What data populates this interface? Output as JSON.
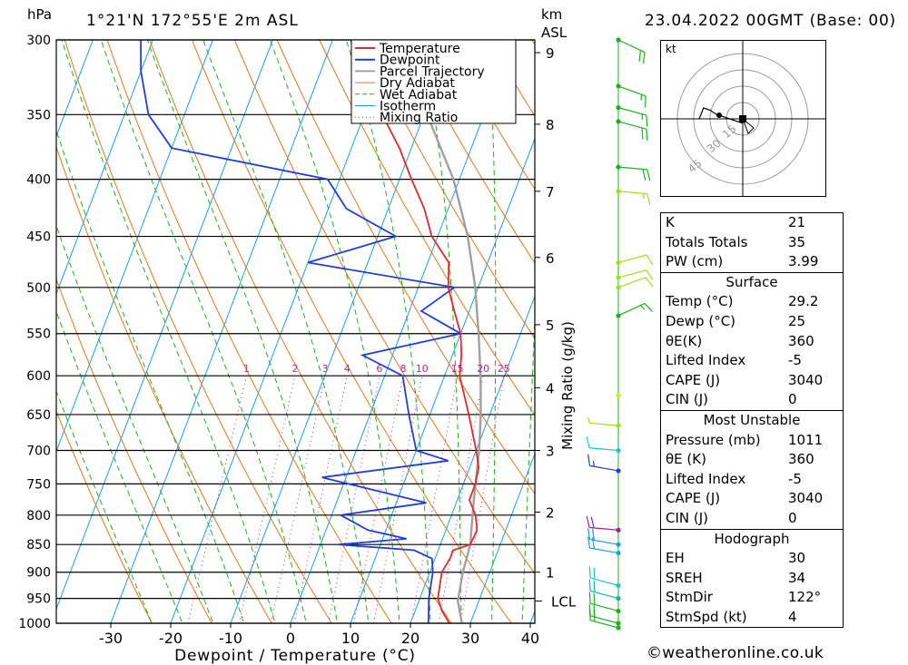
{
  "header": {
    "location": "1°21'N  172°55'E  2m  ASL",
    "datetime": "23.04.2022  00GMT  (Base: 00)",
    "pressure_unit": "hPa",
    "height_unit_1": "km",
    "height_unit_2": "ASL"
  },
  "chart_data": {
    "type": "skew-t",
    "xlabel": "Dewpoint / Temperature (°C)",
    "ylabel_right": "Mixing Ratio (g/kg)",
    "x_ticks": [
      -30,
      -20,
      -10,
      0,
      10,
      20,
      30,
      40
    ],
    "pressure_levels": [
      300,
      350,
      400,
      450,
      500,
      550,
      600,
      650,
      700,
      750,
      800,
      850,
      900,
      950,
      1000
    ],
    "height_ticks_km": [
      1,
      2,
      3,
      4,
      5,
      6,
      7,
      8,
      9
    ],
    "lcl_label": "LCL",
    "lcl_pressure": 955,
    "mixing_ratio_labels": [
      1,
      2,
      3,
      4,
      6,
      8,
      10,
      15,
      20,
      25
    ],
    "legend": [
      {
        "name": "Temperature",
        "color": "#e8262a"
      },
      {
        "name": "Dewpoint",
        "color": "#1f3fd6"
      },
      {
        "name": "Parcel Trajectory",
        "color": "#a0a0a0"
      },
      {
        "name": "Dry Adiabat",
        "color": "#e07818"
      },
      {
        "name": "Wet Adiabat",
        "color": "#19b419"
      },
      {
        "name": "Isotherm",
        "color": "#1aa0e0"
      },
      {
        "name": "Mixing Ratio",
        "color": "#c020a0"
      }
    ],
    "temperature": [
      [
        1013,
        29.2
      ],
      [
        1000,
        26.5
      ],
      [
        975,
        24.5
      ],
      [
        950,
        23.0
      ],
      [
        925,
        22.5
      ],
      [
        900,
        22.0
      ],
      [
        875,
        22.5
      ],
      [
        860,
        22.5
      ],
      [
        850,
        25.0
      ],
      [
        825,
        25.2
      ],
      [
        800,
        24.0
      ],
      [
        775,
        22.0
      ],
      [
        750,
        22.0
      ],
      [
        725,
        21.5
      ],
      [
        700,
        20.0
      ],
      [
        650,
        16.5
      ],
      [
        600,
        12.5
      ],
      [
        575,
        11.5
      ],
      [
        550,
        10.0
      ],
      [
        525,
        7.5
      ],
      [
        500,
        5.0
      ],
      [
        475,
        3.5
      ],
      [
        450,
        -1.0
      ],
      [
        425,
        -4.0
      ],
      [
        400,
        -8.0
      ],
      [
        375,
        -12.0
      ],
      [
        350,
        -17.0
      ],
      [
        300,
        -27.0
      ]
    ],
    "dewpoint": [
      [
        1013,
        25.0
      ],
      [
        1000,
        23.0
      ],
      [
        950,
        21.5
      ],
      [
        900,
        20.5
      ],
      [
        875,
        19.5
      ],
      [
        860,
        16.0
      ],
      [
        850,
        3.0
      ],
      [
        840,
        14.0
      ],
      [
        825,
        7.0
      ],
      [
        800,
        1.5
      ],
      [
        780,
        15.0
      ],
      [
        740,
        -4.0
      ],
      [
        715,
        16.0
      ],
      [
        700,
        10.0
      ],
      [
        650,
        6.5
      ],
      [
        600,
        3.0
      ],
      [
        575,
        -5.0
      ],
      [
        550,
        10.0
      ],
      [
        525,
        2.0
      ],
      [
        500,
        6.0
      ],
      [
        475,
        -20.0
      ],
      [
        450,
        -7.0
      ],
      [
        425,
        -17.0
      ],
      [
        400,
        -22.0
      ],
      [
        375,
        -50.0
      ],
      [
        350,
        -56.0
      ],
      [
        320,
        -60.0
      ],
      [
        300,
        -62.0
      ]
    ],
    "parcel": [
      [
        1013,
        29.2
      ],
      [
        955,
        26.5
      ],
      [
        900,
        25.5
      ],
      [
        850,
        25.0
      ],
      [
        800,
        23.5
      ],
      [
        750,
        22.0
      ],
      [
        700,
        20.5
      ],
      [
        650,
        18.5
      ],
      [
        600,
        16.0
      ],
      [
        550,
        13.0
      ],
      [
        500,
        9.5
      ],
      [
        450,
        5.0
      ],
      [
        400,
        -1.0
      ],
      [
        350,
        -9.5
      ],
      [
        300,
        -22.0
      ]
    ],
    "wind_barbs": [
      {
        "p": 300,
        "dir": 295,
        "spd": 20,
        "color": "#19b419"
      },
      {
        "p": 330,
        "dir": 290,
        "spd": 15,
        "color": "#19b419"
      },
      {
        "p": 345,
        "dir": 285,
        "spd": 15,
        "color": "#19b419"
      },
      {
        "p": 355,
        "dir": 285,
        "spd": 20,
        "color": "#19b419"
      },
      {
        "p": 390,
        "dir": 275,
        "spd": 20,
        "color": "#19b419"
      },
      {
        "p": 410,
        "dir": 275,
        "spd": 15,
        "color": "#9ee019"
      },
      {
        "p": 475,
        "dir": 255,
        "spd": 10,
        "color": "#9ee019"
      },
      {
        "p": 490,
        "dir": 255,
        "spd": 10,
        "color": "#9ee019"
      },
      {
        "p": 500,
        "dir": 250,
        "spd": 10,
        "color": "#9ee019"
      },
      {
        "p": 530,
        "dir": 245,
        "spd": 15,
        "color": "#19b419"
      },
      {
        "p": 625,
        "dir": 0,
        "spd": 0,
        "color": "#e0e019"
      },
      {
        "p": 665,
        "dir": 95,
        "spd": 5,
        "color": "#9ee019"
      },
      {
        "p": 700,
        "dir": 95,
        "spd": 10,
        "color": "#19c8c8"
      },
      {
        "p": 730,
        "dir": 100,
        "spd": 15,
        "color": "#1f3fd6"
      },
      {
        "p": 825,
        "dir": 95,
        "spd": 20,
        "color": "#a020a0"
      },
      {
        "p": 850,
        "dir": 100,
        "spd": 20,
        "color": "#19a0e0"
      },
      {
        "p": 865,
        "dir": 100,
        "spd": 20,
        "color": "#19a0e0"
      },
      {
        "p": 925,
        "dir": 105,
        "spd": 20,
        "color": "#19c8c8"
      },
      {
        "p": 950,
        "dir": 105,
        "spd": 20,
        "color": "#19b4a0"
      },
      {
        "p": 975,
        "dir": 105,
        "spd": 20,
        "color": "#19b419"
      },
      {
        "p": 1000,
        "dir": 105,
        "spd": 20,
        "color": "#19b419"
      },
      {
        "p": 1013,
        "dir": 105,
        "spd": 20,
        "color": "#19b419"
      }
    ],
    "hodograph": {
      "unit": "kt",
      "ring_labels": [
        "15",
        "30",
        "45"
      ],
      "trace_u": [
        0,
        -6,
        -12,
        -18,
        -24,
        -30,
        -36,
        -40
      ],
      "trace_v": [
        -4,
        -2,
        0,
        2,
        4,
        8,
        10,
        0
      ]
    }
  },
  "indices": {
    "rows": [
      {
        "label": "K",
        "value": "21"
      },
      {
        "label": "Totals Totals",
        "value": "35"
      },
      {
        "label": "PW (cm)",
        "value": "3.99"
      }
    ],
    "surface": {
      "title": "Surface",
      "rows": [
        {
          "label": "Temp (°C)",
          "value": "29.2"
        },
        {
          "label": "Dewp (°C)",
          "value": "25"
        },
        {
          "label": "θE(K)",
          "value": "360"
        },
        {
          "label": "Lifted Index",
          "value": "-5"
        },
        {
          "label": "CAPE (J)",
          "value": "3040"
        },
        {
          "label": "CIN (J)",
          "value": "0"
        }
      ]
    },
    "most_unstable": {
      "title": "Most Unstable",
      "rows": [
        {
          "label": "Pressure (mb)",
          "value": "1011"
        },
        {
          "label": "θE (K)",
          "value": "360"
        },
        {
          "label": "Lifted Index",
          "value": "-5"
        },
        {
          "label": "CAPE (J)",
          "value": "3040"
        },
        {
          "label": "CIN (J)",
          "value": "0"
        }
      ]
    },
    "hodograph": {
      "title": "Hodograph",
      "rows": [
        {
          "label": "EH",
          "value": "30"
        },
        {
          "label": "SREH",
          "value": "34"
        },
        {
          "label": "StmDir",
          "value": "122°"
        },
        {
          "label": "StmSpd (kt)",
          "value": "4"
        }
      ]
    }
  },
  "footer": {
    "copyright": "©weatheronline.co.uk"
  }
}
